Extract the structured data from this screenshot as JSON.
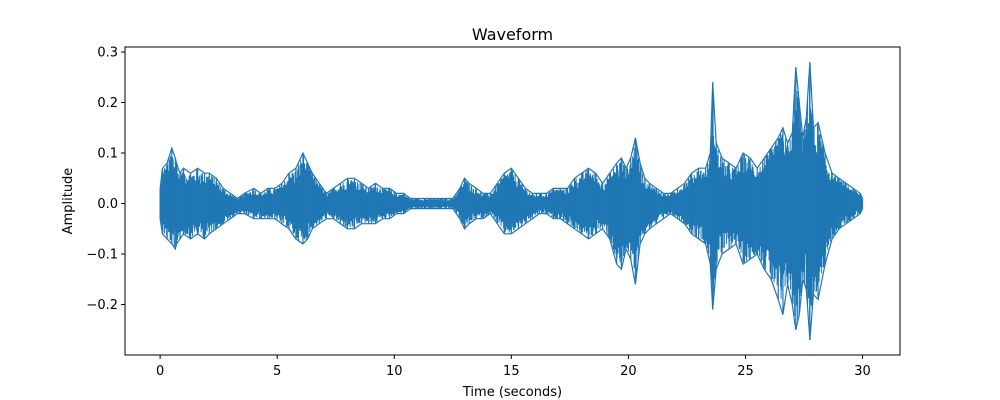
{
  "chart_data": {
    "type": "line",
    "title": "Waveform",
    "xlabel": "Time (seconds)",
    "ylabel": "Amplitude",
    "xlim": [
      -1.5,
      31.6
    ],
    "ylim": [
      -0.3,
      0.31
    ],
    "xticks": [
      0,
      5,
      10,
      15,
      20,
      25,
      30
    ],
    "xtick_labels": [
      "0",
      "5",
      "10",
      "15",
      "20",
      "25",
      "30"
    ],
    "yticks": [
      -0.2,
      -0.1,
      0.0,
      0.1,
      0.2,
      0.3
    ],
    "ytick_labels": [
      "−0.2",
      "−0.1",
      "0.0",
      "0.1",
      "0.2",
      "0.3"
    ],
    "grid": false,
    "line_color": "#1f77b4",
    "series": [
      {
        "x": [
          0,
          0.1,
          0.3,
          0.5,
          0.65,
          0.7,
          0.85,
          1.0,
          1.3,
          1.6,
          1.9,
          2.1,
          2.4,
          2.7,
          3.0,
          3.3,
          3.6,
          4.0,
          4.3,
          4.6,
          4.9,
          5.2,
          5.5,
          5.8,
          6.1,
          6.3,
          6.5,
          6.8,
          7.1,
          7.4,
          7.7,
          8.0,
          8.3,
          8.6,
          8.9,
          9.2,
          9.5,
          9.8,
          10.1,
          10.4,
          10.7,
          11.0,
          11.3,
          11.6,
          11.9,
          12.2,
          12.5,
          12.8,
          13.0,
          13.2,
          13.5,
          13.8,
          14.1,
          14.4,
          14.7,
          15.0,
          15.3,
          15.6,
          15.9,
          16.2,
          16.5,
          16.8,
          17.1,
          17.4,
          17.7,
          18.0,
          18.3,
          18.6,
          18.9,
          19.2,
          19.5,
          19.7,
          19.9,
          20.1,
          20.3,
          20.5,
          20.7,
          20.9,
          21.2,
          21.5,
          21.8,
          22.1,
          22.4,
          22.7,
          23.0,
          23.3,
          23.5,
          23.6,
          23.75,
          24.0,
          24.3,
          24.6,
          24.9,
          25.2,
          25.5,
          25.8,
          26.1,
          26.4,
          26.6,
          26.8,
          27.0,
          27.15,
          27.3,
          27.45,
          27.6,
          27.75,
          27.9,
          28.1,
          28.4,
          28.7,
          29.0,
          29.3,
          29.6,
          29.9,
          30.0
        ],
        "max": [
          0.03,
          0.07,
          0.08,
          0.11,
          0.09,
          0.08,
          0.06,
          0.07,
          0.06,
          0.07,
          0.06,
          0.06,
          0.05,
          0.03,
          0.02,
          0.01,
          0.02,
          0.03,
          0.02,
          0.03,
          0.03,
          0.04,
          0.06,
          0.07,
          0.1,
          0.08,
          0.06,
          0.04,
          0.02,
          0.03,
          0.04,
          0.05,
          0.05,
          0.04,
          0.03,
          0.04,
          0.03,
          0.03,
          0.02,
          0.02,
          0.01,
          0.01,
          0.01,
          0.01,
          0.01,
          0.01,
          0.01,
          0.03,
          0.05,
          0.04,
          0.03,
          0.02,
          0.02,
          0.04,
          0.06,
          0.07,
          0.05,
          0.03,
          0.02,
          0.02,
          0.02,
          0.03,
          0.03,
          0.03,
          0.05,
          0.06,
          0.07,
          0.06,
          0.04,
          0.06,
          0.08,
          0.09,
          0.07,
          0.09,
          0.13,
          0.08,
          0.05,
          0.04,
          0.03,
          0.02,
          0.02,
          0.03,
          0.04,
          0.06,
          0.07,
          0.07,
          0.1,
          0.24,
          0.12,
          0.09,
          0.08,
          0.07,
          0.1,
          0.09,
          0.07,
          0.09,
          0.11,
          0.13,
          0.15,
          0.12,
          0.14,
          0.27,
          0.2,
          0.13,
          0.17,
          0.28,
          0.15,
          0.16,
          0.1,
          0.06,
          0.05,
          0.04,
          0.03,
          0.02,
          0.01
        ],
        "min": [
          -0.03,
          -0.06,
          -0.07,
          -0.08,
          -0.09,
          -0.08,
          -0.07,
          -0.06,
          -0.07,
          -0.06,
          -0.07,
          -0.06,
          -0.05,
          -0.04,
          -0.03,
          -0.02,
          -0.02,
          -0.03,
          -0.03,
          -0.03,
          -0.03,
          -0.04,
          -0.05,
          -0.07,
          -0.08,
          -0.07,
          -0.05,
          -0.04,
          -0.03,
          -0.03,
          -0.04,
          -0.05,
          -0.05,
          -0.04,
          -0.04,
          -0.04,
          -0.03,
          -0.03,
          -0.02,
          -0.02,
          -0.01,
          -0.01,
          -0.01,
          -0.01,
          -0.01,
          -0.01,
          -0.01,
          -0.03,
          -0.05,
          -0.04,
          -0.03,
          -0.03,
          -0.02,
          -0.04,
          -0.06,
          -0.06,
          -0.05,
          -0.04,
          -0.03,
          -0.02,
          -0.02,
          -0.03,
          -0.03,
          -0.04,
          -0.05,
          -0.06,
          -0.07,
          -0.06,
          -0.05,
          -0.07,
          -0.12,
          -0.13,
          -0.09,
          -0.11,
          -0.16,
          -0.08,
          -0.06,
          -0.05,
          -0.04,
          -0.03,
          -0.02,
          -0.03,
          -0.04,
          -0.06,
          -0.07,
          -0.08,
          -0.12,
          -0.21,
          -0.13,
          -0.1,
          -0.09,
          -0.08,
          -0.12,
          -0.11,
          -0.1,
          -0.13,
          -0.15,
          -0.19,
          -0.22,
          -0.16,
          -0.2,
          -0.25,
          -0.22,
          -0.15,
          -0.17,
          -0.27,
          -0.18,
          -0.19,
          -0.12,
          -0.07,
          -0.05,
          -0.04,
          -0.03,
          -0.02,
          -0.01
        ]
      }
    ]
  }
}
